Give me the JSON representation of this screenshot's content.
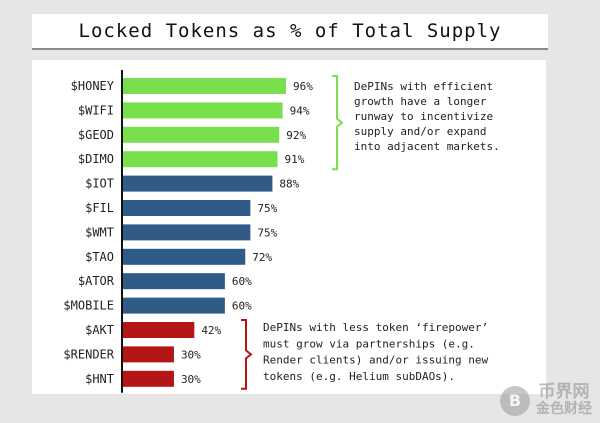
{
  "chart_data": {
    "type": "bar",
    "orientation": "horizontal",
    "title": "Locked Tokens as % of Total Supply",
    "categories": [
      "$HONEY",
      "$WIFI",
      "$GEOD",
      "$DIMO",
      "$IOT",
      "$FIL",
      "$WMT",
      "$TAO",
      "$ATOR",
      "$MOBILE",
      "$AKT",
      "$RENDER",
      "$HNT"
    ],
    "values": [
      96,
      94,
      92,
      91,
      88,
      75,
      75,
      72,
      60,
      60,
      42,
      30,
      30
    ],
    "value_labels": [
      "96%",
      "94%",
      "92%",
      "91%",
      "88%",
      "75%",
      "75%",
      "72%",
      "60%",
      "60%",
      "42%",
      "30%",
      "30%"
    ],
    "groups": [
      {
        "color": "#77e04c",
        "start": 0,
        "end": 3
      },
      {
        "color": "#2f5b86",
        "start": 4,
        "end": 9
      },
      {
        "color": "#b41616",
        "start": 10,
        "end": 12
      }
    ],
    "xlim": [
      0,
      100
    ],
    "grid": false,
    "annotations": [
      {
        "text_lines": [
          "DePINs with efficient",
          "growth have a longer",
          "runway to incentivize",
          "supply and/or expand",
          "into adjacent markets."
        ],
        "color": "#77e04c",
        "start": 0,
        "end": 3
      },
      {
        "text_lines": [
          "DePINs with less token ‘firepower’",
          "must grow via partnerships (e.g.",
          "Render clients) and/or issuing new",
          "tokens (e.g. Helium subDAOs)."
        ],
        "color": "#b41616",
        "start": 10,
        "end": 12
      }
    ]
  },
  "watermark": {
    "icon": "B",
    "top": "币界网",
    "bottom": "金色财经"
  }
}
